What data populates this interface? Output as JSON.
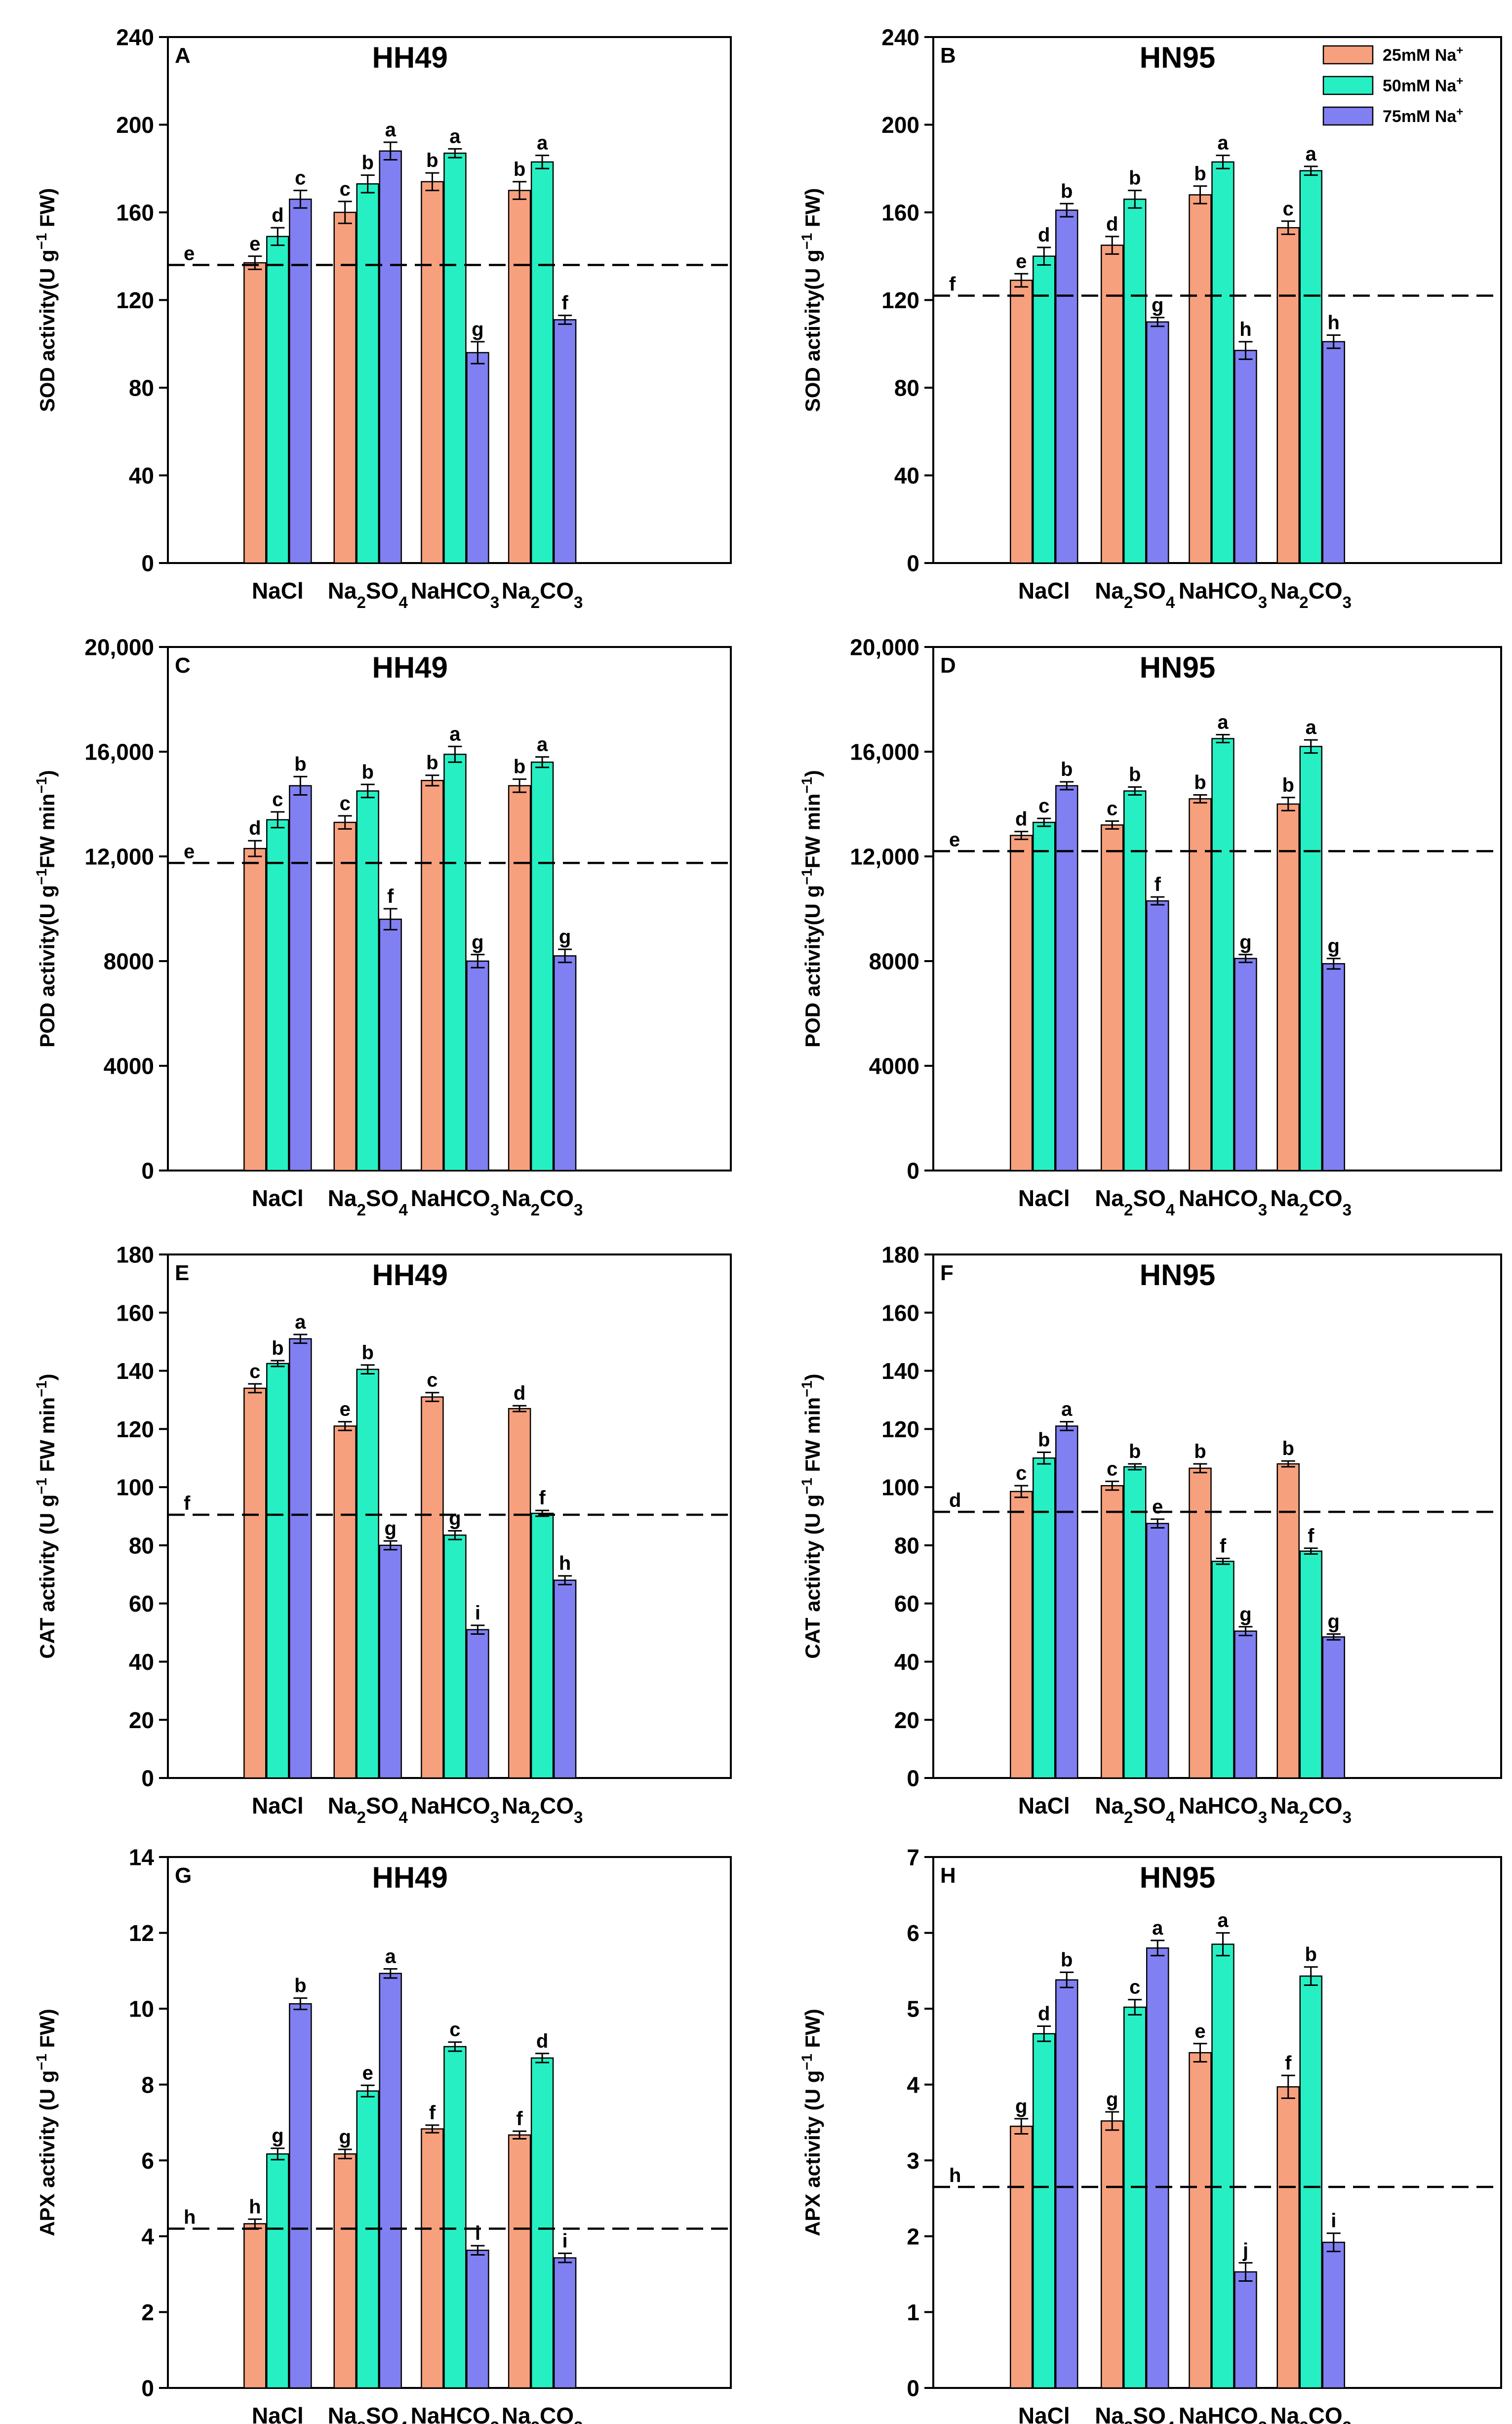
{
  "figure": {
    "legend": [
      {
        "key": "25mM Na+",
        "base": "25mM Na",
        "sup": "+",
        "color": "#f7a07e"
      },
      {
        "key": "50mM Na+",
        "base": "50mM Na",
        "sup": "+",
        "color": "#26f0c3"
      },
      {
        "key": "75mM Na+",
        "base": "75mM Na",
        "sup": "+",
        "color": "#8080f2"
      }
    ],
    "categories": [
      {
        "key": "NaCl",
        "parts": [
          {
            "t": "NaCl",
            "sub": false
          }
        ]
      },
      {
        "key": "Na2SO4",
        "parts": [
          {
            "t": "Na",
            "sub": false
          },
          {
            "t": "2",
            "sub": true
          },
          {
            "t": "SO",
            "sub": false
          },
          {
            "t": "4",
            "sub": true
          }
        ]
      },
      {
        "key": "NaHCO3",
        "parts": [
          {
            "t": "NaHCO",
            "sub": false
          },
          {
            "t": "3",
            "sub": true
          }
        ]
      },
      {
        "key": "Na2CO3",
        "parts": [
          {
            "t": "Na",
            "sub": false
          },
          {
            "t": "2",
            "sub": true
          },
          {
            "t": "CO",
            "sub": false
          },
          {
            "t": "3",
            "sub": true
          }
        ]
      }
    ]
  },
  "chart_data": [
    {
      "panel": "A",
      "title": "HH49",
      "type": "bar",
      "ylabel": {
        "pre": "SOD activity(U g",
        "sup": "−1",
        "post": " FW)"
      },
      "ylim": [
        0,
        240
      ],
      "yticks": [
        0,
        40,
        80,
        120,
        160,
        200,
        240
      ],
      "ytick_labels": [
        "0",
        "40",
        "80",
        "120",
        "160",
        "200",
        "240"
      ],
      "control": {
        "value": 136,
        "letter": "e"
      },
      "series": [
        {
          "name": "25mM Na+",
          "values": [
            137,
            160,
            174,
            170
          ],
          "errors": [
            3,
            5,
            4,
            4
          ],
          "letters": [
            "e",
            "c",
            "b",
            "b"
          ]
        },
        {
          "name": "50mM Na+",
          "values": [
            149,
            173,
            187,
            183
          ],
          "errors": [
            4,
            4,
            2,
            3
          ],
          "letters": [
            "d",
            "b",
            "a",
            "a"
          ]
        },
        {
          "name": "75mM Na+",
          "values": [
            166,
            188,
            96,
            111
          ],
          "errors": [
            4,
            4,
            5,
            2
          ],
          "letters": [
            "c",
            "a",
            "g",
            "f"
          ]
        }
      ]
    },
    {
      "panel": "B",
      "title": "HN95",
      "type": "bar",
      "ylabel": {
        "pre": "SOD activity(U g",
        "sup": "−1",
        "post": " FW)"
      },
      "ylim": [
        0,
        240
      ],
      "yticks": [
        0,
        40,
        80,
        120,
        160,
        200,
        240
      ],
      "ytick_labels": [
        "0",
        "40",
        "80",
        "120",
        "160",
        "200",
        "240"
      ],
      "control": {
        "value": 122,
        "letter": "f"
      },
      "series": [
        {
          "name": "25mM Na+",
          "values": [
            129,
            145,
            168,
            153
          ],
          "errors": [
            3,
            4,
            4,
            3
          ],
          "letters": [
            "e",
            "d",
            "b",
            "c"
          ]
        },
        {
          "name": "50mM Na+",
          "values": [
            140,
            166,
            183,
            179
          ],
          "errors": [
            4,
            4,
            3,
            2
          ],
          "letters": [
            "d",
            "b",
            "a",
            "a"
          ]
        },
        {
          "name": "75mM Na+",
          "values": [
            161,
            110,
            97,
            101
          ],
          "errors": [
            3,
            2,
            4,
            3
          ],
          "letters": [
            "b",
            "g",
            "h",
            "h"
          ]
        }
      ]
    },
    {
      "panel": "C",
      "title": "HH49",
      "type": "bar",
      "ylabel": {
        "pre": "POD activity(U g",
        "sup": "−1",
        "post": "FW min",
        "sup2": "−1",
        "post2": ")"
      },
      "ylim": [
        0,
        20000
      ],
      "yticks": [
        0,
        4000,
        8000,
        12000,
        16000,
        20000
      ],
      "ytick_labels": [
        "0",
        "4000",
        "8000",
        "12,000",
        "16,000",
        "20,000"
      ],
      "control": {
        "value": 11750,
        "letter": "e"
      },
      "series": [
        {
          "name": "25mM Na+",
          "values": [
            12300,
            13300,
            14900,
            14700
          ],
          "errors": [
            300,
            250,
            200,
            250
          ],
          "letters": [
            "d",
            "c",
            "b",
            "b"
          ]
        },
        {
          "name": "50mM Na+",
          "values": [
            13400,
            14500,
            15900,
            15600
          ],
          "errors": [
            300,
            250,
            300,
            200
          ],
          "letters": [
            "c",
            "b",
            "a",
            "a"
          ]
        },
        {
          "name": "75mM Na+",
          "values": [
            14700,
            9600,
            8000,
            8200
          ],
          "errors": [
            350,
            400,
            250,
            250
          ],
          "letters": [
            "b",
            "f",
            "g",
            "g"
          ]
        }
      ]
    },
    {
      "panel": "D",
      "title": "HN95",
      "type": "bar",
      "ylabel": {
        "pre": "POD activity(U g",
        "sup": "−1",
        "post": "FW min",
        "sup2": "−1",
        "post2": ")"
      },
      "ylim": [
        0,
        20000
      ],
      "yticks": [
        0,
        4000,
        8000,
        12000,
        16000,
        20000
      ],
      "ytick_labels": [
        "0",
        "4000",
        "8000",
        "12,000",
        "16,000",
        "20,000"
      ],
      "control": {
        "value": 12200,
        "letter": "e"
      },
      "series": [
        {
          "name": "25mM Na+",
          "values": [
            12800,
            13200,
            14200,
            14000
          ],
          "errors": [
            150,
            150,
            150,
            250
          ],
          "letters": [
            "d",
            "c",
            "b",
            "b"
          ]
        },
        {
          "name": "50mM Na+",
          "values": [
            13300,
            14500,
            16500,
            16200
          ],
          "errors": [
            150,
            150,
            150,
            250
          ],
          "letters": [
            "c",
            "b",
            "a",
            "a"
          ]
        },
        {
          "name": "75mM Na+",
          "values": [
            14700,
            10300,
            8100,
            7900
          ],
          "errors": [
            150,
            150,
            150,
            200
          ],
          "letters": [
            "b",
            "f",
            "g",
            "g"
          ]
        }
      ]
    },
    {
      "panel": "E",
      "title": "HH49",
      "type": "bar",
      "ylabel": {
        "pre": "CAT activity (U g",
        "sup": "−1",
        "post": " FW min",
        "sup2": "−1",
        "post2": ")"
      },
      "ylim": [
        0,
        180
      ],
      "yticks": [
        0,
        20,
        40,
        60,
        80,
        100,
        120,
        140,
        160,
        180
      ],
      "ytick_labels": [
        "0",
        "20",
        "40",
        "60",
        "80",
        "100",
        "120",
        "140",
        "160",
        "180"
      ],
      "control": {
        "value": 90.5,
        "letter": "f"
      },
      "series": [
        {
          "name": "25mM Na+",
          "values": [
            134,
            121,
            131,
            127
          ],
          "errors": [
            1.5,
            1.5,
            1.5,
            1.0
          ],
          "letters": [
            "c",
            "e",
            "c",
            "d"
          ]
        },
        {
          "name": "50mM Na+",
          "values": [
            142.5,
            140.5,
            83.5,
            91
          ],
          "errors": [
            1.0,
            1.5,
            1.5,
            1.0
          ],
          "letters": [
            "b",
            "b",
            "g",
            "f"
          ]
        },
        {
          "name": "75mM Na+",
          "values": [
            151,
            80,
            51,
            68
          ],
          "errors": [
            1.5,
            1.5,
            1.5,
            1.5
          ],
          "letters": [
            "a",
            "g",
            "i",
            "h"
          ]
        }
      ]
    },
    {
      "panel": "F",
      "title": "HN95",
      "type": "bar",
      "ylabel": {
        "pre": "CAT activity (U g",
        "sup": "−1",
        "post": " FW min",
        "sup2": "−1",
        "post2": ")"
      },
      "ylim": [
        0,
        180
      ],
      "yticks": [
        0,
        20,
        40,
        60,
        80,
        100,
        120,
        140,
        160,
        180
      ],
      "ytick_labels": [
        "0",
        "20",
        "40",
        "60",
        "80",
        "100",
        "120",
        "140",
        "160",
        "180"
      ],
      "control": {
        "value": 91.5,
        "letter": "d"
      },
      "series": [
        {
          "name": "25mM Na+",
          "values": [
            98.5,
            100.5,
            106.5,
            108
          ],
          "errors": [
            2.0,
            1.5,
            1.5,
            1.0
          ],
          "letters": [
            "c",
            "c",
            "b",
            "b"
          ]
        },
        {
          "name": "50mM Na+",
          "values": [
            110,
            107,
            74.5,
            78
          ],
          "errors": [
            2.0,
            1.0,
            1.0,
            1.0
          ],
          "letters": [
            "b",
            "b",
            "f",
            "f"
          ]
        },
        {
          "name": "75mM Na+",
          "values": [
            121,
            87.5,
            50.5,
            48.5
          ],
          "errors": [
            1.5,
            1.5,
            1.5,
            1.0
          ],
          "letters": [
            "a",
            "e",
            "g",
            "g"
          ]
        }
      ]
    },
    {
      "panel": "G",
      "title": "HH49",
      "type": "bar",
      "ylabel": {
        "pre": "APX activity (U g",
        "sup": "−1",
        "post": " FW)"
      },
      "ylim": [
        0,
        14
      ],
      "yticks": [
        0,
        2,
        4,
        6,
        8,
        10,
        12,
        14
      ],
      "ytick_labels": [
        "0",
        "2",
        "4",
        "6",
        "8",
        "10",
        "12",
        "14"
      ],
      "control": {
        "value": 4.2,
        "letter": "h"
      },
      "series": [
        {
          "name": "25mM Na+",
          "values": [
            4.33,
            6.17,
            6.83,
            6.67
          ],
          "errors": [
            0.12,
            0.12,
            0.1,
            0.1
          ],
          "letters": [
            "h",
            "g",
            "f",
            "f"
          ]
        },
        {
          "name": "50mM Na+",
          "values": [
            6.17,
            7.83,
            9.0,
            8.7
          ],
          "errors": [
            0.15,
            0.15,
            0.12,
            0.12
          ],
          "letters": [
            "g",
            "e",
            "c",
            "d"
          ]
        },
        {
          "name": "75mM Na+",
          "values": [
            10.13,
            10.93,
            3.63,
            3.43
          ],
          "errors": [
            0.15,
            0.12,
            0.12,
            0.12
          ],
          "letters": [
            "b",
            "a",
            "i",
            "i"
          ]
        }
      ]
    },
    {
      "panel": "H",
      "title": "HN95",
      "type": "bar",
      "ylabel": {
        "pre": "APX activity (U g",
        "sup": "−1",
        "post": " FW)"
      },
      "ylim": [
        0,
        7
      ],
      "yticks": [
        0,
        1,
        2,
        3,
        4,
        5,
        6,
        7
      ],
      "ytick_labels": [
        "0",
        "1",
        "2",
        "3",
        "4",
        "5",
        "6",
        "7"
      ],
      "control": {
        "value": 2.65,
        "letter": "h"
      },
      "series": [
        {
          "name": "25mM Na+",
          "values": [
            3.45,
            3.52,
            4.42,
            3.97
          ],
          "errors": [
            0.1,
            0.12,
            0.12,
            0.15
          ],
          "letters": [
            "g",
            "g",
            "e",
            "f"
          ]
        },
        {
          "name": "50mM Na+",
          "values": [
            4.67,
            5.02,
            5.85,
            5.43
          ],
          "errors": [
            0.1,
            0.1,
            0.15,
            0.12
          ],
          "letters": [
            "d",
            "c",
            "a",
            "b"
          ]
        },
        {
          "name": "75mM Na+",
          "values": [
            5.38,
            5.8,
            1.53,
            1.92
          ],
          "errors": [
            0.1,
            0.1,
            0.12,
            0.12
          ],
          "letters": [
            "b",
            "a",
            "j",
            "i"
          ]
        }
      ]
    }
  ]
}
